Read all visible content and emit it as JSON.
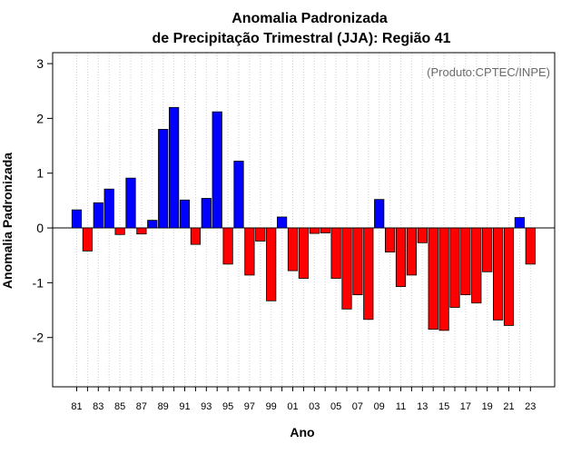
{
  "chart_data": {
    "type": "bar",
    "title": "Anomalia Padronizada",
    "subtitle": "de Precipitação Trimestral (JJA): Região 41",
    "xlabel": "Ano",
    "ylabel": "Anomalia Padronizada",
    "credit": "(Produto:CPTEC/INPE)",
    "ylim": [
      -2.9,
      3.2
    ],
    "yticks": [
      -2,
      -1,
      0,
      1,
      2,
      3
    ],
    "categories": [
      "81",
      "82",
      "83",
      "84",
      "85",
      "86",
      "87",
      "88",
      "89",
      "90",
      "91",
      "92",
      "93",
      "94",
      "95",
      "96",
      "97",
      "98",
      "99",
      "00",
      "01",
      "02",
      "03",
      "04",
      "05",
      "06",
      "07",
      "08",
      "09",
      "10",
      "11",
      "12",
      "13",
      "14",
      "15",
      "16",
      "17",
      "18",
      "19",
      "20",
      "21",
      "22",
      "23"
    ],
    "xtick_labels": [
      "81",
      "83",
      "85",
      "87",
      "89",
      "91",
      "93",
      "95",
      "97",
      "99",
      "01",
      "03",
      "05",
      "07",
      "09",
      "11",
      "13",
      "15",
      "17",
      "19",
      "21",
      "23"
    ],
    "values": [
      0.33,
      -0.42,
      0.46,
      0.71,
      -0.12,
      0.91,
      -0.11,
      0.14,
      1.8,
      2.2,
      0.51,
      -0.3,
      0.54,
      2.12,
      -0.66,
      1.22,
      -0.86,
      -0.24,
      -1.33,
      0.2,
      -0.78,
      -0.92,
      -0.1,
      -0.09,
      -0.92,
      -1.48,
      -1.22,
      -1.67,
      0.52,
      -0.44,
      -1.07,
      -0.86,
      -0.27,
      -1.85,
      -1.87,
      -1.45,
      -1.22,
      -1.37,
      -0.8,
      -1.68,
      -1.78,
      0.19,
      -0.66
    ],
    "positive_color": "#0000ff",
    "negative_color": "#ff0000",
    "grid": "vertical dotted"
  }
}
